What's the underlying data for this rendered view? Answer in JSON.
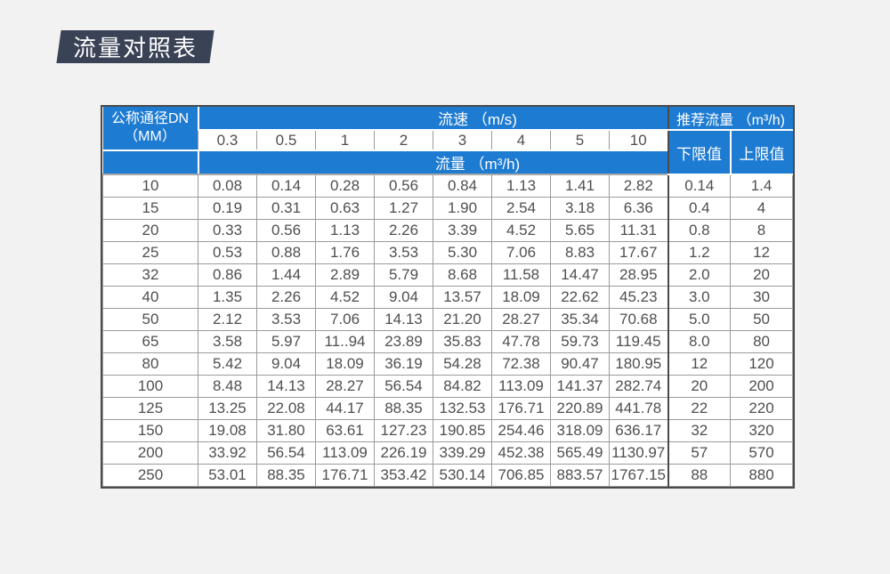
{
  "badge": {
    "label": "流量对照表"
  },
  "colors": {
    "header_blue": "#1e7bd2",
    "badge_bg": "#3a4256",
    "page_bg": "#f2f2f2",
    "frame_border": "#4a4a4a",
    "grid_border": "#9b9b9b",
    "cell_text": "#4f4f4f"
  },
  "chart_data": {
    "type": "table",
    "title": "流量对照表",
    "header": {
      "dn_line1": "公称通径DN",
      "dn_line2": "（MM）",
      "velocity_label": "流速 （m/s)",
      "flow_label": "流量 （m³/h)",
      "recommended_label": "推荐流量 （m³/h)",
      "lower_limit": "下限值",
      "upper_limit": "上限值"
    },
    "velocity_columns": [
      "0.3",
      "0.5",
      "1",
      "2",
      "3",
      "4",
      "5",
      "10"
    ],
    "rows": [
      [
        "10",
        "0.08",
        "0.14",
        "0.28",
        "0.56",
        "0.84",
        "1.13",
        "1.41",
        "2.82",
        "0.14",
        "1.4"
      ],
      [
        "15",
        "0.19",
        "0.31",
        "0.63",
        "1.27",
        "1.90",
        "2.54",
        "3.18",
        "6.36",
        "0.4",
        "4"
      ],
      [
        "20",
        "0.33",
        "0.56",
        "1.13",
        "2.26",
        "3.39",
        "4.52",
        "5.65",
        "11.31",
        "0.8",
        "8"
      ],
      [
        "25",
        "0.53",
        "0.88",
        "1.76",
        "3.53",
        "5.30",
        "7.06",
        "8.83",
        "17.67",
        "1.2",
        "12"
      ],
      [
        "32",
        "0.86",
        "1.44",
        "2.89",
        "5.79",
        "8.68",
        "11.58",
        "14.47",
        "28.95",
        "2.0",
        "20"
      ],
      [
        "40",
        "1.35",
        "2.26",
        "4.52",
        "9.04",
        "13.57",
        "18.09",
        "22.62",
        "45.23",
        "3.0",
        "30"
      ],
      [
        "50",
        "2.12",
        "3.53",
        "7.06",
        "14.13",
        "21.20",
        "28.27",
        "35.34",
        "70.68",
        "5.0",
        "50"
      ],
      [
        "65",
        "3.58",
        "5.97",
        "11..94",
        "23.89",
        "35.83",
        "47.78",
        "59.73",
        "119.45",
        "8.0",
        "80"
      ],
      [
        "80",
        "5.42",
        "9.04",
        "18.09",
        "36.19",
        "54.28",
        "72.38",
        "90.47",
        "180.95",
        "12",
        "120"
      ],
      [
        "100",
        "8.48",
        "14.13",
        "28.27",
        "56.54",
        "84.82",
        "113.09",
        "141.37",
        "282.74",
        "20",
        "200"
      ],
      [
        "125",
        "13.25",
        "22.08",
        "44.17",
        "88.35",
        "132.53",
        "176.71",
        "220.89",
        "441.78",
        "22",
        "220"
      ],
      [
        "150",
        "19.08",
        "31.80",
        "63.61",
        "127.23",
        "190.85",
        "254.46",
        "318.09",
        "636.17",
        "32",
        "320"
      ],
      [
        "200",
        "33.92",
        "56.54",
        "113.09",
        "226.19",
        "339.29",
        "452.38",
        "565.49",
        "1130.97",
        "57",
        "570"
      ],
      [
        "250",
        "53.01",
        "88.35",
        "176.71",
        "353.42",
        "530.14",
        "706.85",
        "883.57",
        "1767.15",
        "88",
        "880"
      ]
    ]
  }
}
